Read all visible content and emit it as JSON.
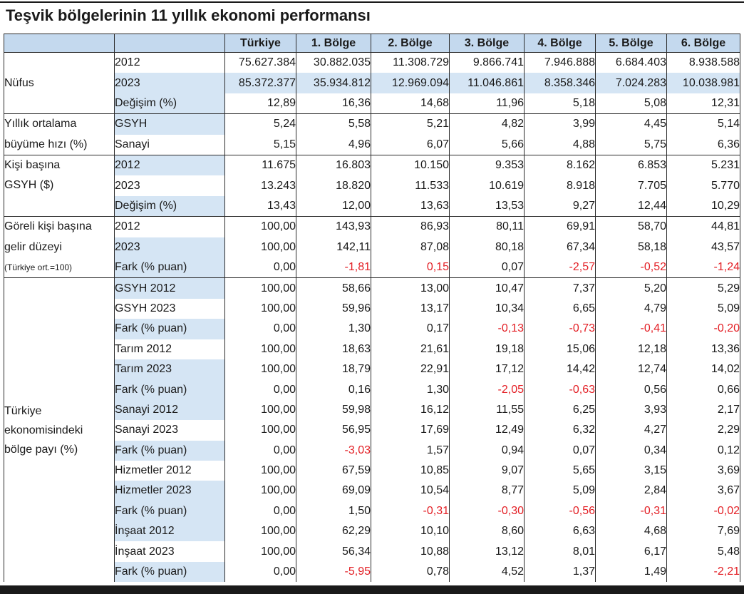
{
  "title": "Teşvik bölgelerinin 11 yıllık ekonomi performansı",
  "colors": {
    "header_bg": "#c4d9ee",
    "shade_bg": "#d5e5f4",
    "negative": "#e31e24",
    "rule": "#1a1a1a"
  },
  "table": {
    "columns": [
      "Türkiye",
      "1. Bölge",
      "2. Bölge",
      "3. Bölge",
      "4. Bölge",
      "5. Bölge",
      "6. Bölge"
    ],
    "groups": [
      {
        "label_lines": [
          "Nüfus"
        ],
        "rows": [
          {
            "label": "2012",
            "values": [
              "75.627.384",
              "30.882.035",
              "11.308.729",
              "9.866.741",
              "7.946.888",
              "6.684.403",
              "8.938.588"
            ]
          },
          {
            "label": "2023",
            "values": [
              "85.372.377",
              "35.934.812",
              "12.969.094",
              "11.046.861",
              "8.358.346",
              "7.024.283",
              "10.038.981"
            ]
          },
          {
            "label": "Değişim (%)",
            "values": [
              "12,89",
              "16,36",
              "14,68",
              "11,96",
              "5,18",
              "5,08",
              "12,31"
            ]
          }
        ]
      },
      {
        "label_lines": [
          "Yıllık ortalama",
          "büyüme hızı (%)"
        ],
        "rows": [
          {
            "label": "GSYH",
            "values": [
              "5,24",
              "5,58",
              "5,21",
              "4,82",
              "3,99",
              "4,45",
              "5,14"
            ]
          },
          {
            "label": "Sanayi",
            "values": [
              "5,15",
              "4,96",
              "6,07",
              "5,66",
              "4,88",
              "5,75",
              "6,36"
            ]
          }
        ]
      },
      {
        "label_lines": [
          "Kişi başına",
          "GSYH ($)"
        ],
        "rows": [
          {
            "label": "2012",
            "values": [
              "11.675",
              "16.803",
              "10.150",
              "9.353",
              "8.162",
              "6.853",
              "5.231"
            ]
          },
          {
            "label": "2023",
            "values": [
              "13.243",
              "18.820",
              "11.533",
              "10.619",
              "8.918",
              "7.705",
              "5.770"
            ]
          },
          {
            "label": "Değişim (%)",
            "values": [
              "13,43",
              "12,00",
              "13,63",
              "13,53",
              "9,27",
              "12,44",
              "10,29"
            ]
          }
        ]
      },
      {
        "label_lines": [
          "Göreli kişi başına",
          "gelir düzeyi"
        ],
        "note": "(Türkiye ort.=100)",
        "rows": [
          {
            "label": "2012",
            "values": [
              "100,00",
              "143,93",
              "86,93",
              "80,11",
              "69,91",
              "58,70",
              "44,81"
            ]
          },
          {
            "label": "2023",
            "values": [
              "100,00",
              "142,11",
              "87,08",
              "80,18",
              "67,34",
              "58,18",
              "43,57"
            ]
          },
          {
            "label": "Fark (% puan)",
            "values": [
              "0,00",
              "-1,81",
              "0,15",
              "0,07",
              "-2,57",
              "-0,52",
              "-1,24"
            ],
            "red_cells": [
              1,
              2,
              4,
              5,
              6
            ]
          }
        ]
      },
      {
        "label_lines": [
          "Türkiye",
          "ekonomisindeki",
          "bölge payı (%)"
        ],
        "rows": [
          {
            "label": "GSYH 2012",
            "values": [
              "100,00",
              "58,66",
              "13,00",
              "10,47",
              "7,37",
              "5,20",
              "5,29"
            ]
          },
          {
            "label": "GSYH 2023",
            "values": [
              "100,00",
              "59,96",
              "13,17",
              "10,34",
              "6,65",
              "4,79",
              "5,09"
            ]
          },
          {
            "label": "Fark (% puan)",
            "values": [
              "0,00",
              "1,30",
              "0,17",
              "-0,13",
              "-0,73",
              "-0,41",
              "-0,20"
            ],
            "red_cells": [
              3,
              4,
              5,
              6
            ]
          },
          {
            "label": "Tarım 2012",
            "values": [
              "100,00",
              "18,63",
              "21,61",
              "19,18",
              "15,06",
              "12,18",
              "13,36"
            ]
          },
          {
            "label": "Tarım 2023",
            "values": [
              "100,00",
              "18,79",
              "22,91",
              "17,12",
              "14,42",
              "12,74",
              "14,02"
            ]
          },
          {
            "label": "Fark (% puan)",
            "values": [
              "0,00",
              "0,16",
              "1,30",
              "-2,05",
              "-0,63",
              "0,56",
              "0,66"
            ],
            "red_cells": [
              3,
              4
            ]
          },
          {
            "label": "Sanayi 2012",
            "values": [
              "100,00",
              "59,98",
              "16,12",
              "11,55",
              "6,25",
              "3,93",
              "2,17"
            ]
          },
          {
            "label": "Sanayi 2023",
            "values": [
              "100,00",
              "56,95",
              "17,69",
              "12,49",
              "6,32",
              "4,27",
              "2,29"
            ]
          },
          {
            "label": "Fark (% puan)",
            "values": [
              "0,00",
              "-3,03",
              "1,57",
              "0,94",
              "0,07",
              "0,34",
              "0,12"
            ],
            "red_cells": [
              1
            ]
          },
          {
            "label": "Hizmetler 2012",
            "values": [
              "100,00",
              "67,59",
              "10,85",
              "9,07",
              "5,65",
              "3,15",
              "3,69"
            ]
          },
          {
            "label": "Hizmetler 2023",
            "values": [
              "100,00",
              "69,09",
              "10,54",
              "8,77",
              "5,09",
              "2,84",
              "3,67"
            ]
          },
          {
            "label": "Fark (% puan)",
            "values": [
              "0,00",
              "1,50",
              "-0,31",
              "-0,30",
              "-0,56",
              "-0,31",
              "-0,02"
            ],
            "red_cells": [
              2,
              3,
              4,
              5,
              6
            ]
          },
          {
            "label": "İnşaat 2012",
            "values": [
              "100,00",
              "62,29",
              "10,10",
              "8,60",
              "6,63",
              "4,68",
              "7,69"
            ]
          },
          {
            "label": "İnşaat 2023",
            "values": [
              "100,00",
              "56,34",
              "10,88",
              "13,12",
              "8,01",
              "6,17",
              "5,48"
            ]
          },
          {
            "label": "Fark (% puan)",
            "values": [
              "0,00",
              "-5,95",
              "0,78",
              "4,52",
              "1,37",
              "1,49",
              "-2,21"
            ],
            "red_cells": [
              1,
              6
            ]
          }
        ]
      }
    ]
  }
}
